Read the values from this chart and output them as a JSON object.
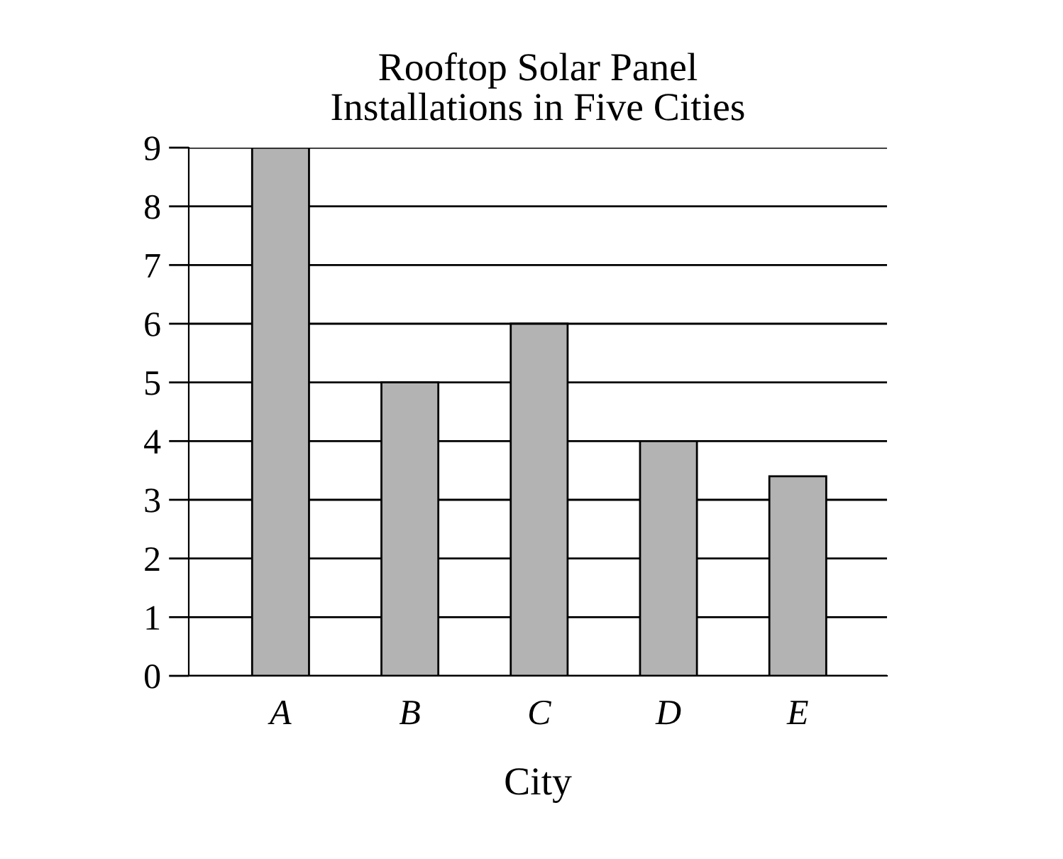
{
  "chart_data": {
    "type": "bar",
    "title": "Rooftop Solar Panel\nInstallations in Five Cities",
    "xlabel": "City",
    "categories": [
      "A",
      "B",
      "C",
      "D",
      "E"
    ],
    "values": [
      9,
      5,
      6,
      4,
      3.4
    ],
    "color": "#b3b3b3",
    "ylim": [
      0,
      9
    ],
    "yticks": [
      0,
      1,
      2,
      3,
      4,
      5,
      6,
      7,
      8,
      9
    ],
    "grid": "y",
    "legend": false
  }
}
